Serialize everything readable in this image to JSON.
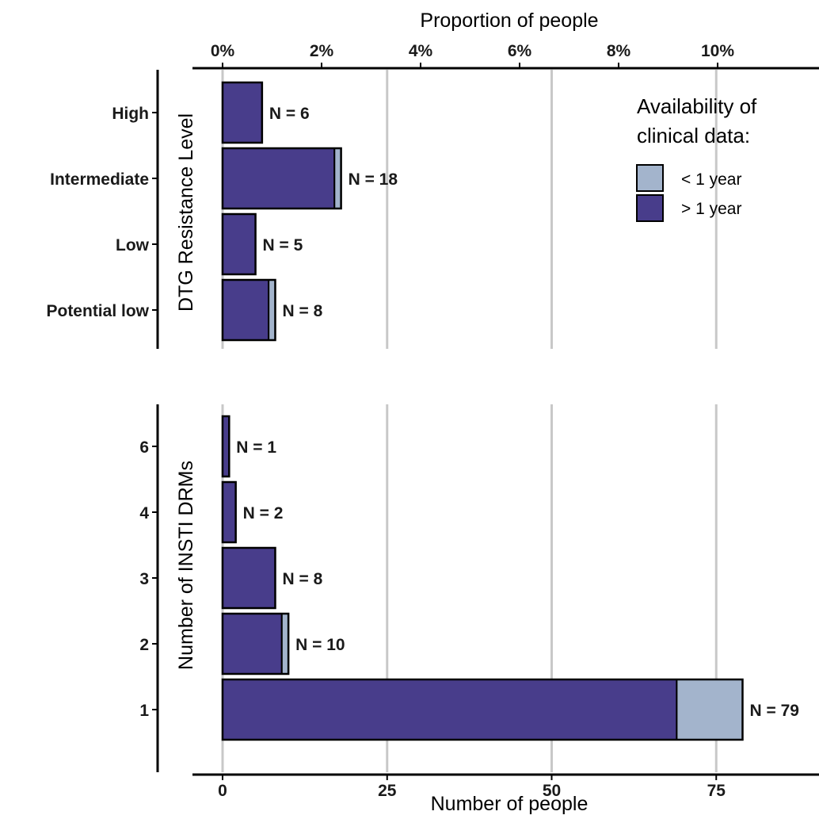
{
  "chart_data": {
    "type": "bar",
    "orientation": "horizontal",
    "stacked": true,
    "x_axis_bottom": {
      "title": "Number of people",
      "ticks": [
        0,
        25,
        50,
        75
      ],
      "tick_labels": [
        "0",
        "25",
        "50",
        "75"
      ]
    },
    "x_axis_top": {
      "title": "Proportion of people",
      "tick_labels": [
        "0%",
        "2%",
        "4%",
        "6%",
        "8%",
        "10%"
      ]
    },
    "grid": "vertical",
    "colors": {
      "over_1_year": "#483d8b",
      "under_1_year": "#a3b4cc",
      "grid": "#c8c8c8"
    },
    "legend": {
      "title_line1": "Availability of",
      "title_line2": "clinical data:",
      "placement": "top-right",
      "items": [
        {
          "label": "< 1 year",
          "color": "#a3b4cc"
        },
        {
          "label": "> 1 year",
          "color": "#483d8b"
        }
      ]
    },
    "panels": [
      {
        "ylabel": "DTG Resistance Level",
        "categories": [
          "High",
          "Intermediate",
          "Low",
          "Potential low"
        ],
        "series": [
          {
            "name": "> 1 year",
            "values": [
              6,
              17,
              5,
              7
            ]
          },
          {
            "name": "< 1 year",
            "values": [
              0,
              1,
              0,
              1
            ]
          }
        ],
        "totals": [
          6,
          18,
          5,
          8
        ],
        "labels": [
          "N =  6",
          "N =  18",
          "N =  5",
          "N =  8"
        ]
      },
      {
        "ylabel": "Number of INSTI DRMs",
        "categories": [
          "6",
          "4",
          "3",
          "2",
          "1"
        ],
        "series": [
          {
            "name": "> 1 year",
            "values": [
              1,
              2,
              8,
              9,
              69
            ]
          },
          {
            "name": "< 1 year",
            "values": [
              0,
              0,
              0,
              1,
              10
            ]
          }
        ],
        "totals": [
          1,
          2,
          8,
          10,
          79
        ],
        "labels": [
          "N =  1",
          "N =  2",
          "N =  8",
          "N =  10",
          "N =  79"
        ]
      }
    ]
  }
}
